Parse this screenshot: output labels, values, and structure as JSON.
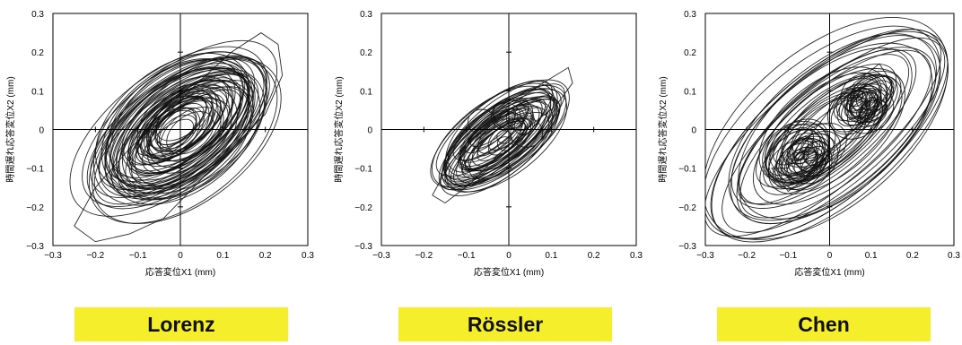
{
  "chart_data": [
    {
      "type": "line",
      "caption": "Lorenz",
      "xlabel": "応答変位X1 (mm)",
      "ylabel": "時間遅れ応答変位X2 (mm)",
      "xlim": [
        -0.3,
        0.3
      ],
      "ylim": [
        -0.3,
        0.3
      ],
      "xticks": [
        "−0.3",
        "−0.2",
        "−0.1",
        "0",
        "0.1",
        "0.2",
        "0.3"
      ],
      "yticks": [
        "0.3",
        "0.2",
        "0.1",
        "0",
        "−0.1",
        "−0.2",
        "−0.3"
      ],
      "grid": false,
      "series": [
        {
          "x": [
            -0.25,
            -0.2,
            -0.12,
            -0.04,
            0.04,
            0.12,
            0.19,
            0.23,
            0.24,
            0.2,
            0.12,
            0.04,
            -0.04,
            -0.12,
            -0.2,
            -0.25
          ],
          "y": [
            -0.25,
            -0.15,
            -0.05,
            0.03,
            0.12,
            0.2,
            0.25,
            0.22,
            0.14,
            0.04,
            -0.05,
            -0.14,
            -0.23,
            -0.27,
            -0.29,
            -0.25
          ]
        }
      ]
    },
    {
      "type": "line",
      "caption": "Rössler",
      "xlabel": "応答変位X1 (mm)",
      "ylabel": "時間遅れ応答変位X2 (mm)",
      "xlim": [
        -0.3,
        0.3
      ],
      "ylim": [
        -0.3,
        0.3
      ],
      "xticks": [
        "−0.3",
        "−0.2",
        "−0.1",
        "0",
        "0.1",
        "0.2",
        "0.3"
      ],
      "yticks": [
        "0.3",
        "0.2",
        "0.1",
        "0",
        "−0.1",
        "−0.2",
        "−0.3"
      ],
      "grid": false,
      "series": [
        {
          "x": [
            -0.18,
            -0.14,
            -0.08,
            0.0,
            0.08,
            0.14,
            0.15,
            0.11,
            0.05,
            -0.02,
            -0.09,
            -0.15,
            -0.18
          ],
          "y": [
            -0.17,
            -0.09,
            -0.01,
            0.06,
            0.12,
            0.16,
            0.12,
            0.06,
            0.01,
            -0.06,
            -0.14,
            -0.19,
            -0.17
          ]
        }
      ]
    },
    {
      "type": "line",
      "caption": "Chen",
      "xlabel": "応答変位X1 (mm)",
      "ylabel": "時間遅れ応答変位X2 (mm)",
      "xlim": [
        -0.3,
        0.3
      ],
      "ylim": [
        -0.3,
        0.3
      ],
      "xticks": [
        "−0.3",
        "−0.2",
        "−0.1",
        "0",
        "0.1",
        "0.2",
        "0.3"
      ],
      "yticks": [
        "0.3",
        "0.2",
        "0.1",
        "0",
        "−0.1",
        "−0.2",
        "−0.3"
      ],
      "grid": false,
      "series": [
        {
          "x": [
            -0.1,
            -0.05,
            0.0,
            0.06,
            0.12,
            0.15,
            0.12,
            0.06,
            0.0,
            -0.05,
            -0.1,
            -0.14,
            -0.1
          ],
          "y": [
            -0.1,
            -0.02,
            0.05,
            0.12,
            0.17,
            0.12,
            0.06,
            0.0,
            -0.06,
            -0.12,
            -0.16,
            -0.1,
            -0.1
          ]
        }
      ]
    }
  ]
}
